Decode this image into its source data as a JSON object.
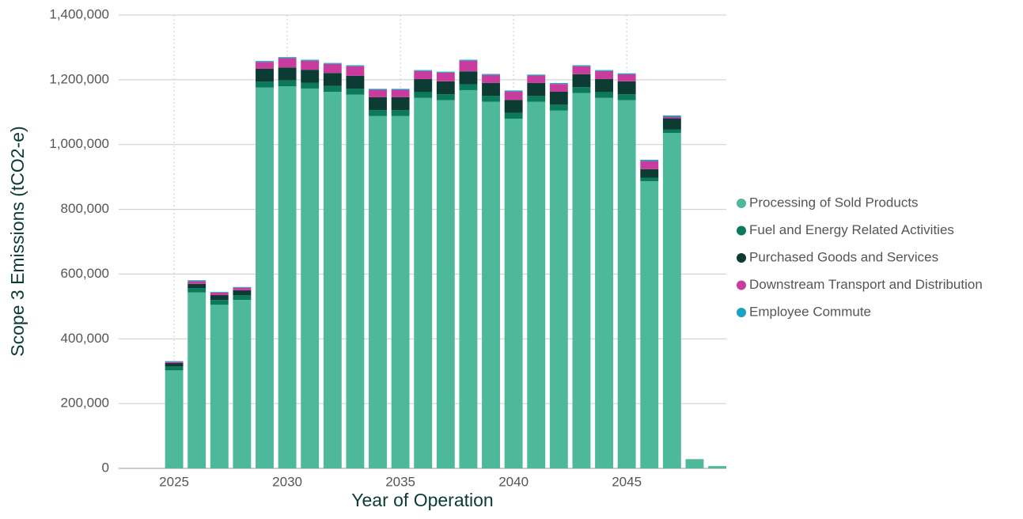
{
  "chart_data": {
    "type": "stacked_bar",
    "x": [
      2025,
      2026,
      2027,
      2028,
      2029,
      2030,
      2031,
      2032,
      2033,
      2034,
      2035,
      2036,
      2037,
      2038,
      2039,
      2040,
      2041,
      2042,
      2043,
      2044,
      2045,
      2046,
      2047,
      2048,
      2049
    ],
    "series": [
      {
        "name": "Processing of Sold Products",
        "color": "#4db89a",
        "values": [
          303000,
          543000,
          505000,
          520000,
          1176000,
          1180000,
          1173000,
          1163000,
          1154000,
          1088000,
          1088000,
          1144000,
          1137000,
          1168000,
          1132000,
          1080000,
          1132000,
          1105000,
          1159000,
          1144000,
          1137000,
          887000,
          1036000,
          27000,
          7000
        ]
      },
      {
        "name": "Fuel and Energy Related Activities",
        "color": "#0a7a5a",
        "values": [
          12000,
          14000,
          15000,
          15000,
          18000,
          18000,
          18000,
          18000,
          18000,
          18000,
          18000,
          18000,
          18000,
          18000,
          18000,
          18000,
          18000,
          18000,
          18000,
          18000,
          18000,
          10000,
          10000,
          1000,
          0
        ]
      },
      {
        "name": "Purchased Goods and Services",
        "color": "#0b3b32",
        "values": [
          10000,
          13000,
          15000,
          15000,
          40000,
          40000,
          40000,
          40000,
          40000,
          40000,
          40000,
          40000,
          40000,
          40000,
          40000,
          40000,
          40000,
          40000,
          40000,
          40000,
          40000,
          27000,
          35000,
          0,
          0
        ]
      },
      {
        "name": "Downstream Transport and Distribution",
        "color": "#c83c9e",
        "values": [
          4000,
          8000,
          8000,
          8000,
          21000,
          29000,
          28000,
          28000,
          30000,
          23000,
          23000,
          25000,
          27000,
          33000,
          25000,
          26000,
          23000,
          24000,
          25000,
          25000,
          22000,
          25000,
          5000,
          0,
          0
        ]
      },
      {
        "name": "Employee Commute",
        "color": "#1aa3c0",
        "values": [
          2000,
          3000,
          2000,
          2000,
          3000,
          3000,
          3000,
          3000,
          3000,
          3000,
          3000,
          3000,
          3000,
          3000,
          3000,
          3000,
          3000,
          3000,
          3000,
          3000,
          3000,
          4000,
          4000,
          0,
          0
        ]
      }
    ],
    "xlabel": "Year of Operation",
    "ylabel": "Scope 3 Emissions (tCO2-e)",
    "xlim": [
      2022.55,
      2049.4
    ],
    "xticks": [
      2025,
      2030,
      2035,
      2040,
      2045
    ],
    "ylim": [
      0,
      1400000
    ],
    "yticks": [
      0,
      {
        "value": 200000,
        "label": "200,000"
      },
      {
        "value": 400000,
        "label": "400,000"
      },
      {
        "value": 600000,
        "label": "600,000"
      },
      {
        "value": 800000,
        "label": "800,000"
      },
      {
        "value": 1000000,
        "label": "1,000,000"
      },
      {
        "value": 1200000,
        "label": "1,200,000"
      },
      {
        "value": 1400000,
        "label": "1,400,000"
      }
    ],
    "grid": true,
    "legend": "right"
  }
}
